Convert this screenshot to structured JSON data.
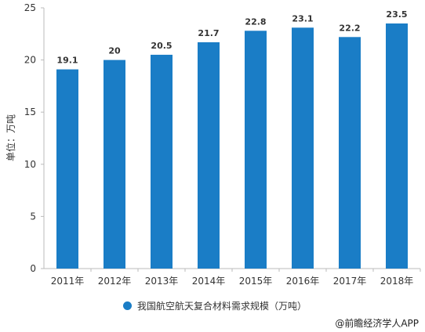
{
  "chart_data": {
    "type": "bar",
    "categories": [
      "2011年",
      "2012年",
      "2013年",
      "2014年",
      "2015年",
      "2016年",
      "2017年",
      "2018年"
    ],
    "series": [
      {
        "name": "我国航空航天复合材料需求规模（万吨）",
        "values": [
          19.1,
          20,
          20.5,
          21.7,
          22.8,
          23.1,
          22.2,
          23.5
        ]
      }
    ],
    "data_labels": [
      "19.1",
      "20",
      "20.5",
      "21.7",
      "22.8",
      "23.1",
      "22.2",
      "23.5"
    ],
    "ylabel": "单位：万吨",
    "ylim": [
      0,
      25
    ],
    "yticks": [
      0,
      5,
      10,
      15,
      20,
      25
    ],
    "grid": false,
    "legend_position": "bottom",
    "bar_color": "#1a7dc6"
  },
  "source_text": "@前瞻经济学人APP"
}
